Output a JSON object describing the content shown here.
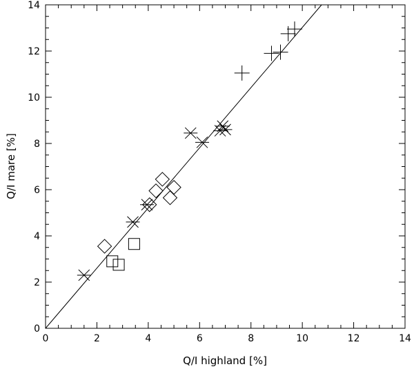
{
  "chart_data": {
    "type": "scatter",
    "xlabel": "Q/I highland [%]",
    "ylabel": "Q/I mare [%]",
    "xlim": [
      0,
      14
    ],
    "ylim": [
      0,
      14
    ],
    "xticks": [
      "0",
      "2",
      "4",
      "6",
      "8",
      "10",
      "12",
      "14"
    ],
    "yticks": [
      "0",
      "2",
      "4",
      "6",
      "8",
      "10",
      "12",
      "14"
    ],
    "grid": false,
    "legend": "none",
    "series": [
      {
        "marker": "plus",
        "points": [
          {
            "x": 7.65,
            "y": 11.05
          },
          {
            "x": 8.8,
            "y": 11.9
          },
          {
            "x": 9.15,
            "y": 11.95
          },
          {
            "x": 9.45,
            "y": 12.75
          },
          {
            "x": 9.7,
            "y": 12.95
          }
        ]
      },
      {
        "marker": "asterisk",
        "points": [
          {
            "x": 1.5,
            "y": 2.3
          },
          {
            "x": 3.4,
            "y": 4.6
          },
          {
            "x": 3.95,
            "y": 5.35
          },
          {
            "x": 5.65,
            "y": 8.45
          },
          {
            "x": 6.1,
            "y": 8.05
          },
          {
            "x": 6.8,
            "y": 8.55
          },
          {
            "x": 6.9,
            "y": 8.75
          },
          {
            "x": 7.0,
            "y": 8.6
          }
        ]
      },
      {
        "marker": "diamond",
        "points": [
          {
            "x": 2.3,
            "y": 3.55
          },
          {
            "x": 4.05,
            "y": 5.35
          },
          {
            "x": 4.3,
            "y": 5.95
          },
          {
            "x": 4.55,
            "y": 6.45
          },
          {
            "x": 4.85,
            "y": 5.65
          },
          {
            "x": 5.0,
            "y": 6.1
          }
        ]
      },
      {
        "marker": "square",
        "points": [
          {
            "x": 2.6,
            "y": 2.9
          },
          {
            "x": 2.85,
            "y": 2.75
          },
          {
            "x": 3.45,
            "y": 3.65
          }
        ]
      }
    ],
    "fit_line": {
      "x": [
        0,
        10.75
      ],
      "y": [
        0,
        14
      ]
    },
    "colors": {
      "axes": "#000000",
      "markers": "#000000",
      "background": "#ffffff"
    }
  }
}
